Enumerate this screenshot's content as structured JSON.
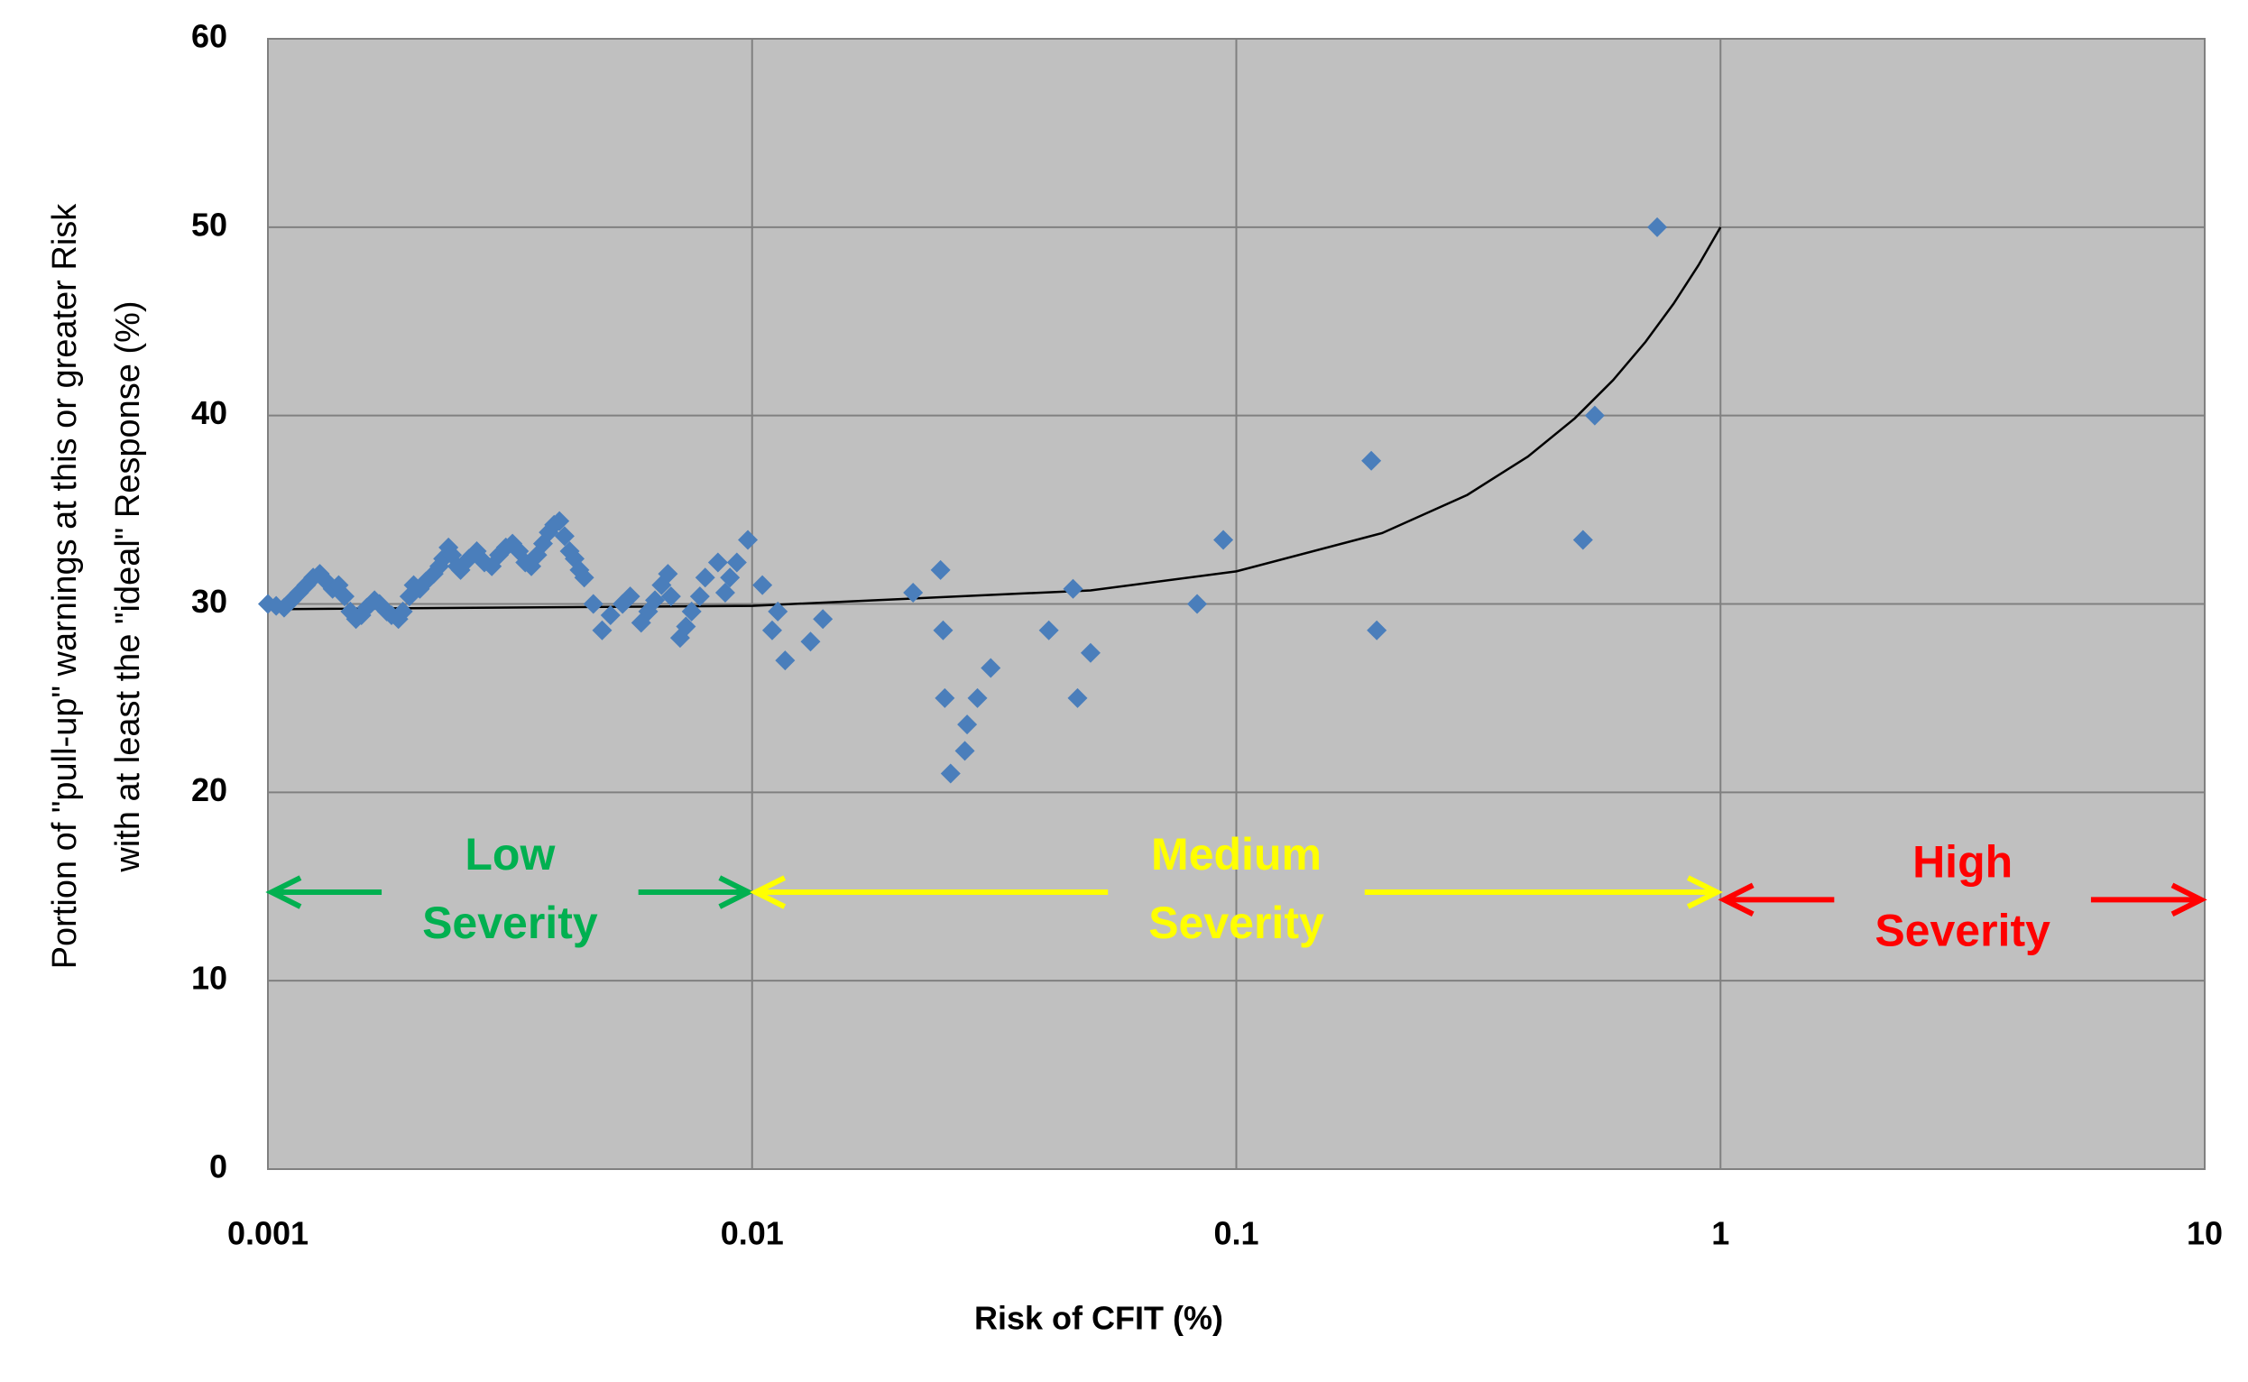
{
  "chart_data": {
    "type": "scatter",
    "y_label": [
      "Portion of \"pull-up\" warnings at this or greater Risk",
      "with at least the \"ideal\" Response (%)"
    ],
    "x_label": "Risk of CFIT (%)",
    "xscale": "log",
    "xlim": [
      0.001,
      10
    ],
    "xticks": [
      0.001,
      0.01,
      0.1,
      1,
      10
    ],
    "ylim": [
      0,
      60
    ],
    "yticks": [
      0,
      10,
      20,
      30,
      40,
      50,
      60
    ],
    "grid": true,
    "color": "#4a7ebb",
    "x": [
      0.001,
      0.00104,
      0.00108,
      0.00112,
      0.00116,
      0.0012,
      0.00124,
      0.00128,
      0.00132,
      0.00136,
      0.0014,
      0.00144,
      0.00148,
      0.00152,
      0.00156,
      0.0016,
      0.00166,
      0.0017,
      0.00176,
      0.0018,
      0.00186,
      0.0019,
      0.00196,
      0.002,
      0.00206,
      0.00212,
      0.0022,
      0.00226,
      0.0023,
      0.00236,
      0.0024,
      0.00246,
      0.0025,
      0.0026,
      0.0027,
      0.0028,
      0.0029,
      0.003,
      0.0031,
      0.0032,
      0.0033,
      0.0034,
      0.0035,
      0.0036,
      0.0037,
      0.0038,
      0.0039,
      0.004,
      0.0041,
      0.0042,
      0.0043,
      0.0044,
      0.0045,
      0.0047,
      0.0049,
      0.0051,
      0.0054,
      0.0056,
      0.0059,
      0.0061,
      0.0063,
      0.0065,
      0.0067,
      0.0068,
      0.0071,
      0.0073,
      0.0075,
      0.0078,
      0.008,
      0.0085,
      0.0088,
      0.009,
      0.0093,
      0.0098,
      0.0105,
      0.011,
      0.0113,
      0.0117,
      0.0132,
      0.014,
      0.0215,
      0.0245,
      0.0248,
      0.025,
      0.0257,
      0.0275,
      0.0278,
      0.0292,
      0.0311,
      0.041,
      0.046,
      0.047,
      0.05,
      0.083,
      0.094,
      0.19,
      0.195,
      0.52,
      0.55,
      0.74
    ],
    "values": [
      30.0,
      29.9,
      29.8,
      30.2,
      30.6,
      31.0,
      31.4,
      31.6,
      31.2,
      30.8,
      31.0,
      30.4,
      29.6,
      29.2,
      29.4,
      29.8,
      30.2,
      30.0,
      29.6,
      29.4,
      29.2,
      29.6,
      30.4,
      31.0,
      30.8,
      31.2,
      31.6,
      32.0,
      32.4,
      33.0,
      32.6,
      32.0,
      31.8,
      32.4,
      32.8,
      32.2,
      32.0,
      32.6,
      33.0,
      33.2,
      32.8,
      32.2,
      32.0,
      32.6,
      33.2,
      33.8,
      34.2,
      34.4,
      33.6,
      32.8,
      32.4,
      31.8,
      31.4,
      30.0,
      28.6,
      29.4,
      30.0,
      30.4,
      29.0,
      29.6,
      30.2,
      31.0,
      31.6,
      30.4,
      28.2,
      28.8,
      29.6,
      30.4,
      31.4,
      32.2,
      30.6,
      31.4,
      32.2,
      33.4,
      31.0,
      28.6,
      29.6,
      27.0,
      28.0,
      29.2,
      30.6,
      31.8,
      28.6,
      25.0,
      21.0,
      22.2,
      23.6,
      25.0,
      26.6,
      28.6,
      30.8,
      25.0,
      27.4,
      30.0,
      33.4,
      37.6,
      28.6,
      33.4,
      40.0,
      50.0
    ],
    "trendline": {
      "color": "#000000",
      "x": [
        0.001,
        0.01,
        0.05,
        0.1,
        0.2,
        0.3,
        0.4,
        0.5,
        0.6,
        0.7,
        0.8,
        0.9,
        1
      ],
      "values": [
        29.72,
        29.9,
        30.72,
        31.73,
        33.76,
        35.79,
        37.82,
        39.85,
        41.88,
        43.91,
        45.94,
        47.97,
        50.0
      ]
    },
    "annotations": [
      {
        "lines": [
          "Low",
          "Severity"
        ],
        "color": "#00b050",
        "x": [
          0.001,
          0.01
        ],
        "y": 14.7
      },
      {
        "lines": [
          "Medium",
          "Severity"
        ],
        "color": "#ffff00",
        "x": [
          0.01,
          1
        ],
        "y": 14.7
      },
      {
        "lines": [
          "High",
          "Severity"
        ],
        "color": "#ff0000",
        "x": [
          1,
          10
        ],
        "y": 14.3
      }
    ]
  }
}
